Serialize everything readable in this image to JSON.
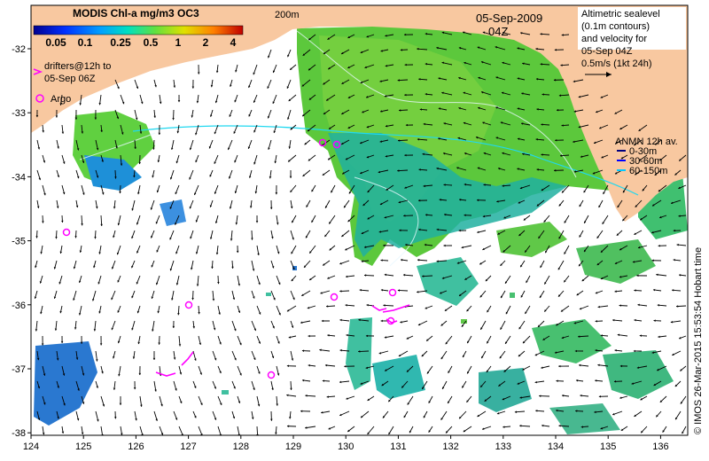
{
  "map": {
    "product_title": "MODIS Chl-a mg/m3 OC3",
    "colorbar_labels": [
      "0.05",
      "0.1",
      "0.25",
      "0.5",
      "1",
      "2",
      "4"
    ],
    "date": "05-Sep-2009",
    "time": "04Z",
    "isobath_label": "200m",
    "legend_right": {
      "lines": [
        "Altimetric sealevel",
        "(0.1m contours)",
        "and velocity for",
        "05-Sep 04Z"
      ],
      "scale_label": "0.5m/s (1kt 24h)"
    },
    "legend_left": {
      "drifter_lines": [
        "drifters@12h to",
        "05-Sep 06Z"
      ],
      "argo_label": "Argo"
    },
    "anmn": {
      "title": "ANMN 12h av.",
      "depths": [
        "0-30m",
        "30-60m",
        "60-150m"
      ],
      "depth_colors": [
        "#000080",
        "#0000ff",
        "#00c8ff"
      ]
    },
    "credit": "© IMOS 26-Mar-2015 15:53:54 Hobart time",
    "x_axis": {
      "ticks": [
        "124",
        "125",
        "126",
        "127",
        "128",
        "129",
        "130",
        "131",
        "132",
        "133",
        "134",
        "135",
        "136"
      ]
    },
    "y_axis": {
      "ticks": [
        "-32",
        "-33",
        "-34",
        "-35",
        "-36",
        "-37",
        "-38"
      ]
    },
    "colors": {
      "land": "#f8c8a0",
      "chl_low": "#1e64c8",
      "chl_mid": "#20c8a0",
      "chl_high": "#60d040",
      "argo": "#ff00ff",
      "velocity": "#000000"
    }
  }
}
